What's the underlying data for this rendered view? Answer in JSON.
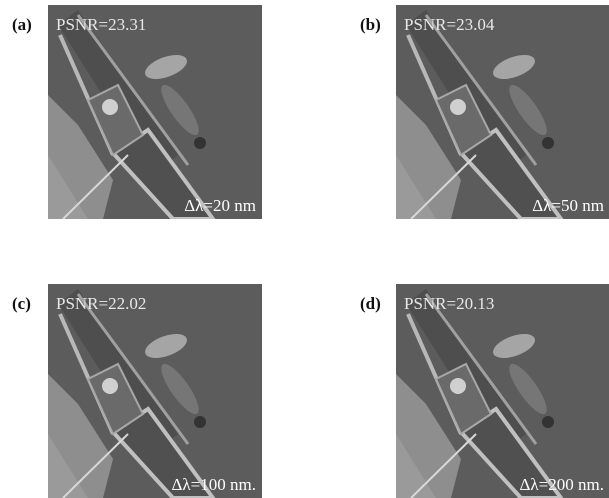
{
  "panels": [
    {
      "label": "(a)",
      "psnr": "PSNR=23.31",
      "bandwidth": "Δλ=20 nm"
    },
    {
      "label": "(b)",
      "psnr": "PSNR=23.04",
      "bandwidth": "Δλ=50 nm"
    },
    {
      "label": "(c)",
      "psnr": "PSNR=22.02",
      "bandwidth": "Δλ=100 nm."
    },
    {
      "label": "(d)",
      "psnr": "PSNR=20.13",
      "bandwidth": "Δλ=200 nm."
    }
  ]
}
